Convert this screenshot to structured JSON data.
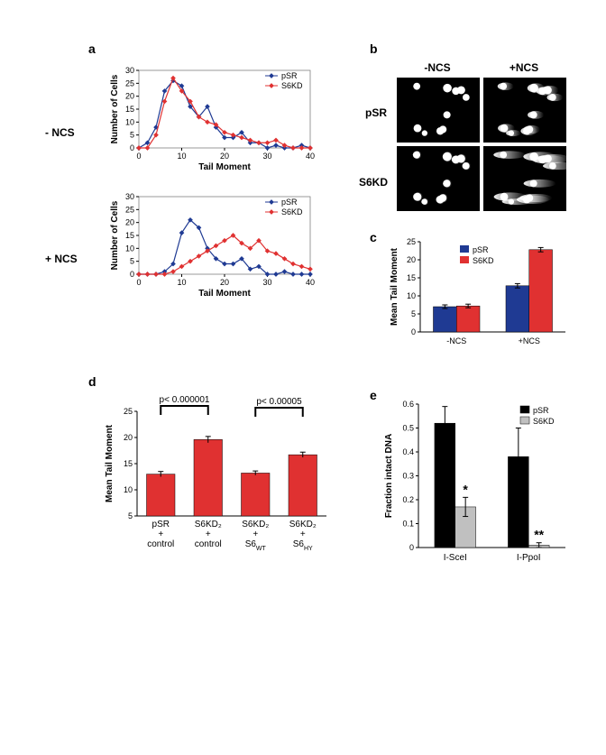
{
  "colors": {
    "pSR": "#1f3a93",
    "S6KD": "#e03131",
    "black": "#000000",
    "grey": "#c0c0c0",
    "axis": "#000000",
    "bg": "#ffffff"
  },
  "panel_a": {
    "label": "a",
    "row_labels": [
      "- NCS",
      "+ NCS"
    ],
    "xlabel": "Tail Moment",
    "ylabel": "Number of Cells",
    "xlim": [
      0,
      40
    ],
    "xtick_step": 10,
    "ylim": [
      0,
      30
    ],
    "ytick_step": 5,
    "series_names": [
      "pSR",
      "S6KD"
    ],
    "minus_ncs": {
      "pSR": [
        0,
        2,
        8,
        22,
        26,
        24,
        16,
        12,
        16,
        8,
        4,
        4,
        6,
        2,
        2,
        0,
        1,
        0,
        0,
        1,
        0
      ],
      "S6KD": [
        0,
        0,
        5,
        18,
        27,
        22,
        18,
        12,
        10,
        9,
        6,
        5,
        4,
        3,
        2,
        2,
        3,
        1,
        0,
        0,
        0
      ]
    },
    "plus_ncs": {
      "pSR": [
        0,
        0,
        0,
        1,
        4,
        16,
        21,
        18,
        10,
        6,
        4,
        4,
        6,
        2,
        3,
        0,
        0,
        1,
        0,
        0,
        0
      ],
      "S6KD": [
        0,
        0,
        0,
        0,
        1,
        3,
        5,
        7,
        9,
        11,
        13,
        15,
        12,
        10,
        13,
        9,
        8,
        6,
        4,
        3,
        2
      ]
    }
  },
  "panel_b": {
    "label": "b",
    "col_headers": [
      "-NCS",
      "+NCS"
    ],
    "row_headers": [
      "pSR",
      "S6KD"
    ]
  },
  "panel_c": {
    "label": "c",
    "ylabel": "Mean Tail Moment",
    "ylim": [
      0,
      25
    ],
    "ytick_step": 5,
    "legend": [
      "pSR",
      "S6KD"
    ],
    "categories": [
      "-NCS",
      "+NCS"
    ],
    "values": {
      "pSR": [
        7.0,
        12.8
      ],
      "S6KD": [
        7.2,
        22.8
      ]
    },
    "errors": {
      "pSR": [
        0.5,
        0.6
      ],
      "S6KD": [
        0.5,
        0.6
      ]
    },
    "bar_colors": {
      "pSR": "#1f3a93",
      "S6KD": "#e03131"
    }
  },
  "panel_d": {
    "label": "d",
    "ylabel": "Mean Tail Moment",
    "ylim": [
      5,
      25
    ],
    "ytick_step": 5,
    "categories": [
      "pSR\n+\ncontrol",
      "S6KD₂\n+\ncontrol",
      "S6KD₂\n+\nS6_WT",
      "S6KD₂\n+\nS6_HY"
    ],
    "cat_plain": [
      "pSR + control",
      "S6KD2 + control",
      "S6KD2 + S6WT",
      "S6KD2 + S6HY"
    ],
    "values": [
      13.0,
      19.6,
      13.2,
      16.7
    ],
    "errors": [
      0.5,
      0.6,
      0.4,
      0.5
    ],
    "bar_color": "#e03131",
    "pvalues": [
      {
        "from": 0,
        "to": 1,
        "text": "p< 0.000001"
      },
      {
        "from": 2,
        "to": 3,
        "text": "p< 0.00005"
      }
    ]
  },
  "panel_e": {
    "label": "e",
    "ylabel": "Fraction intact DNA",
    "ylim": [
      0,
      0.6
    ],
    "ytick_step": 0.1,
    "legend": [
      "pSR",
      "S6KD"
    ],
    "categories": [
      "I-SceI",
      "I-PpoI"
    ],
    "values": {
      "pSR": [
        0.52,
        0.38
      ],
      "S6KD": [
        0.17,
        0.01
      ]
    },
    "errors": {
      "pSR": [
        0.07,
        0.12
      ],
      "S6KD": [
        0.04,
        0.01
      ]
    },
    "bar_colors": {
      "pSR": "#000000",
      "S6KD": "#c0c0c0"
    },
    "annotations": [
      {
        "cat": 0,
        "series": "S6KD",
        "text": "*"
      },
      {
        "cat": 1,
        "series": "S6KD",
        "text": "**"
      }
    ]
  }
}
